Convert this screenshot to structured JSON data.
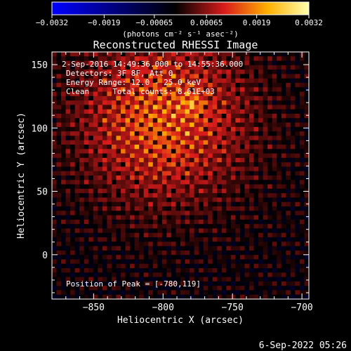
{
  "colors": {
    "background": "#000000",
    "foreground": "#ffffff",
    "colorbar_negative_start": "#0000ff",
    "colorbar_negative_end": "#000000",
    "colorbar_positive_mid": "#d91b1b",
    "colorbar_positive_high": "#ffb000",
    "colorbar_positive_end": "#ffffb0"
  },
  "footer": {
    "timestamp": "6-Sep-2022 05:26"
  },
  "chart_data": {
    "type": "heatmap",
    "title": "Reconstructed RHESSI Image",
    "xlabel": "Heliocentric X (arcsec)",
    "ylabel": "Heliocentric Y (arcsec)",
    "xlim": [
      -880,
      -695
    ],
    "ylim": [
      -35,
      160
    ],
    "x_ticks": [
      -850,
      -800,
      -750,
      -700
    ],
    "x_tick_labels": [
      "−850",
      "−800",
      "−750",
      "−700"
    ],
    "y_ticks": [
      0,
      50,
      100,
      150
    ],
    "y_tick_labels": [
      "0",
      "50",
      "100",
      "150"
    ],
    "colorbar": {
      "min": -0.0032,
      "max": 0.0032,
      "ticks": [
        -0.0032,
        -0.0019,
        -0.00065,
        0.00065,
        0.0019,
        0.0032
      ],
      "tick_labels": [
        "−0.0032",
        "−0.0019",
        "−0.00065",
        "0.00065",
        "0.0019",
        "0.0032"
      ],
      "unit_label": "(photons cm⁻² s⁻¹ asec⁻²)"
    },
    "annotations": [
      "2-Sep-2016 14:49:36.000 to 14:55:36.000",
      "Detectors: 3F 8F, Att 0",
      "Energy Range: 12.0 - 25.0 keV",
      "Clean     Total counts: 8.61E+03"
    ],
    "peak_label": "Position of Peak = [-780,119]",
    "peak": [
      -780,
      119
    ],
    "image_model": {
      "grid": [
        56,
        56
      ],
      "source_center": [
        -800,
        108
      ],
      "source_sigma": [
        42,
        46
      ],
      "peak_value": 0.0032
    }
  }
}
